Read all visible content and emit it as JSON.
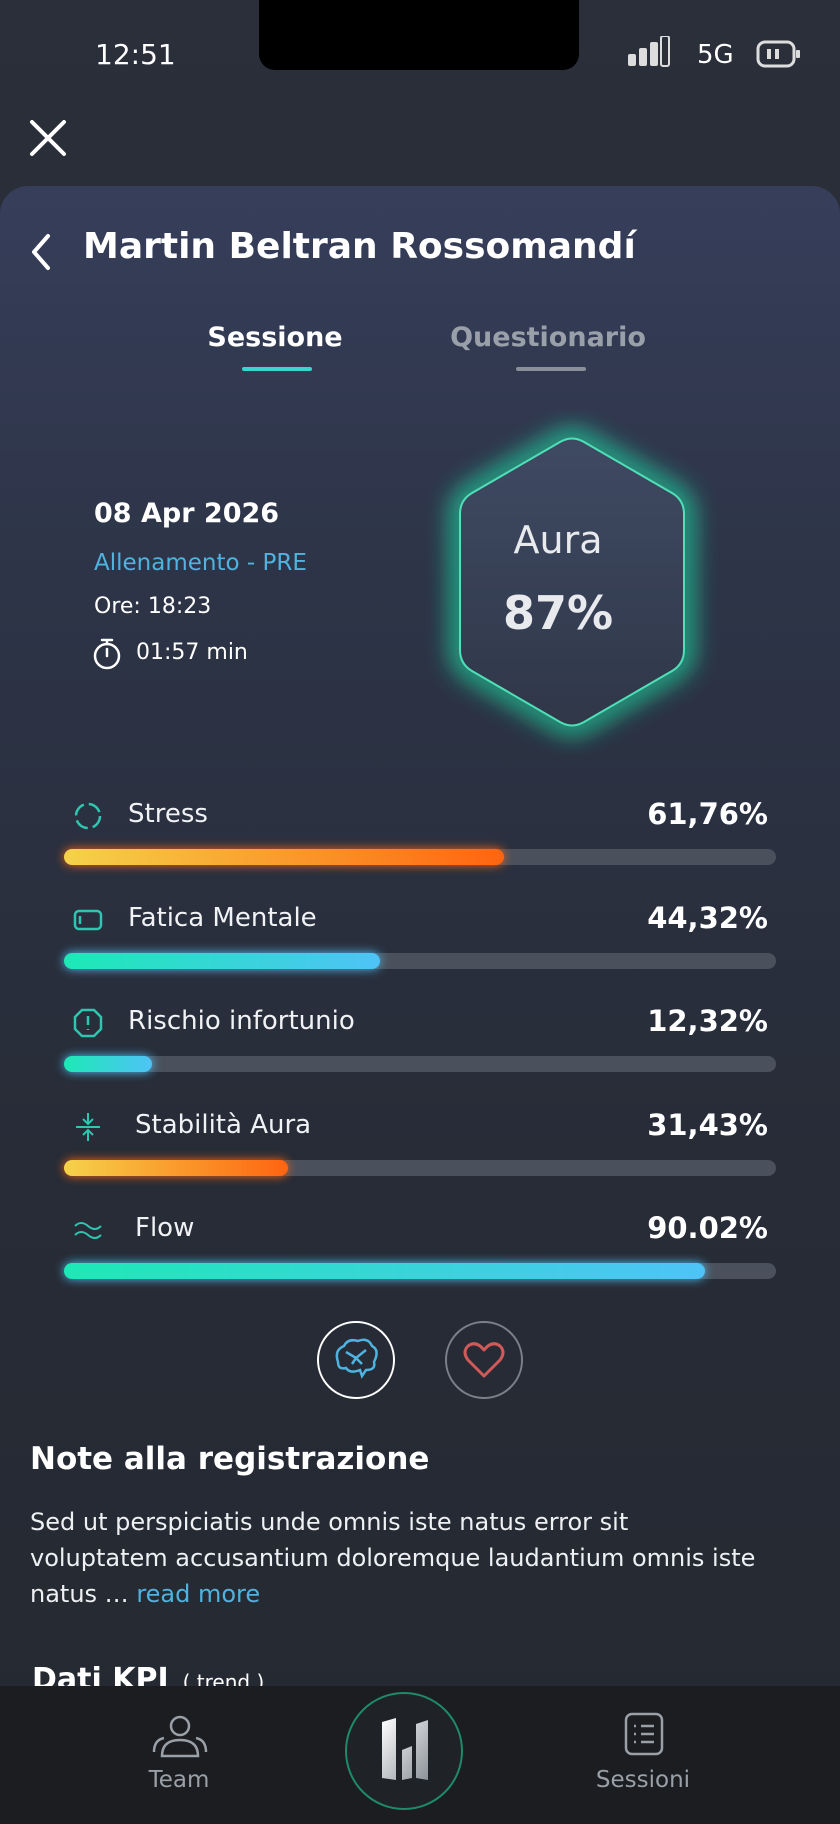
{
  "status_bar": {
    "time": "12:51",
    "network": "5G"
  },
  "header": {
    "title": "Martin Beltran Rossomandí"
  },
  "tabs": [
    "Sessione",
    "Questionario"
  ],
  "session": {
    "date": "08 Apr 2026",
    "type": "Allenamento - PRE",
    "time": "Ore: 18:23",
    "duration": "01:57 min"
  },
  "aura": {
    "label": "Aura",
    "value": "87%"
  },
  "metrics": [
    {
      "label": "Stress",
      "value": 61.76,
      "value_label": "61,76%",
      "colors": [
        "#f5d24a",
        "#ff6410"
      ]
    },
    {
      "label": "Fatica Mentale",
      "value": 44.32,
      "value_label": "44,32%",
      "colors": [
        "#1de9b6",
        "#4fc3f7"
      ]
    },
    {
      "label": "Rischio infortunio",
      "value": 12.32,
      "value_label": "12,32%",
      "colors": [
        "#1de9b6",
        "#4fc3f7"
      ]
    },
    {
      "label": "Stabilità Aura",
      "value": 31.43,
      "value_label": "31,43%",
      "colors": [
        "#f5d24a",
        "#ff6410"
      ]
    },
    {
      "label": "Flow",
      "value": 90.02,
      "value_label": "90.02%",
      "colors": [
        "#1de9b6",
        "#4fc3f7"
      ]
    }
  ],
  "notes": {
    "title": "Note alla registrazione",
    "text": "Sed ut perspiciatis unde omnis iste natus error sit voluptatem accusantium doloremque laudantium omnis iste natus …",
    "link": "read more"
  },
  "kpi": {
    "title": "Dati KPI",
    "subtitle": "( trend )"
  },
  "nav": [
    "Team",
    "Sessioni"
  ]
}
